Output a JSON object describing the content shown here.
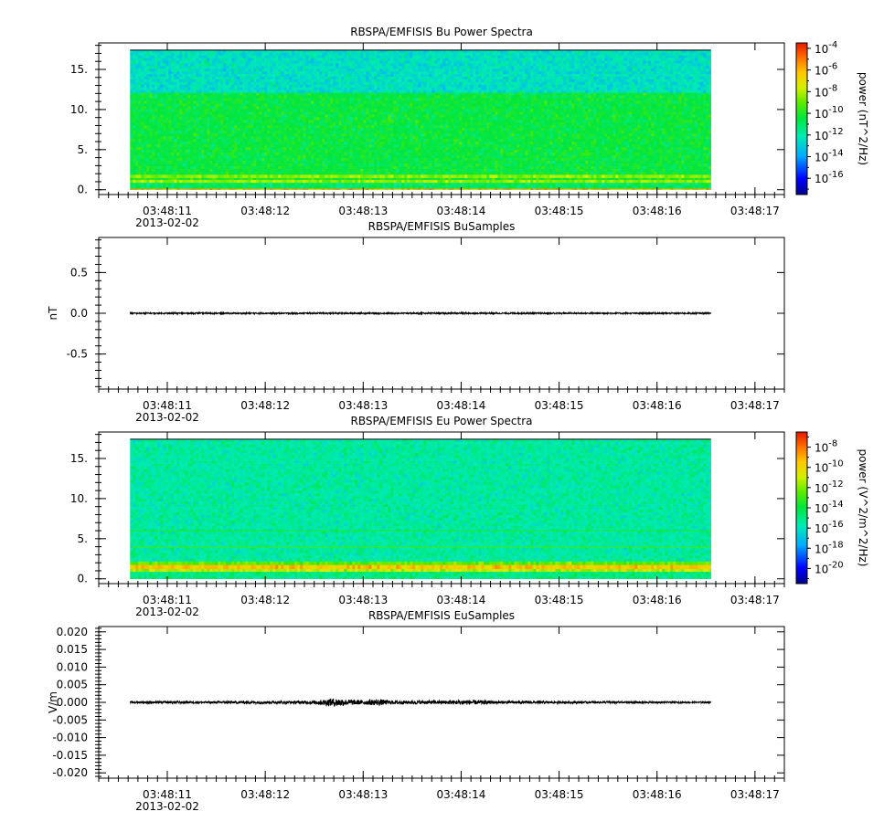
{
  "chart_data": [
    {
      "type": "heatmap",
      "title": "RBSPA/EMFISIS  Bu Power Spectra",
      "ylabel": "",
      "ylim": [
        -0.6,
        18.3
      ],
      "yticks": [
        0,
        5,
        10,
        15
      ],
      "ytick_labels": [
        "0.",
        "5.",
        "10.",
        "15."
      ],
      "xlim": [
        10.3,
        17.3
      ],
      "xticks": [
        11,
        12,
        13,
        14,
        15,
        16,
        17
      ],
      "xtick_labels": [
        "03:48:11",
        "03:48:12",
        "03:48:13",
        "03:48:14",
        "03:48:15",
        "03:48:16",
        "03:48:17"
      ],
      "date_label": "2013-02-02",
      "data_x_range": [
        10.62,
        16.55
      ],
      "data_y_range": [
        0,
        17.4
      ],
      "bands": [
        {
          "y": [
            0.0,
            0.15
          ],
          "level": -6
        },
        {
          "y": [
            0.15,
            0.9
          ],
          "level": -11
        },
        {
          "y": [
            0.9,
            1.25
          ],
          "level": -8.5
        },
        {
          "y": [
            1.25,
            1.5
          ],
          "level": -10
        },
        {
          "y": [
            1.5,
            1.9
          ],
          "level": -8.5
        },
        {
          "y": [
            1.9,
            12.1
          ],
          "level": -10.5
        },
        {
          "y": [
            12.1,
            17.4
          ],
          "level": -12.5
        }
      ],
      "colorbar": {
        "label": "power (nT^2/Hz)",
        "range": [
          -17.5,
          -3.5
        ],
        "ticks": [
          -16,
          -14,
          -12,
          -10,
          -8,
          -6,
          -4
        ],
        "tick_exponents": [
          "-16",
          "-14",
          "-12",
          "-10",
          "-8",
          "-6",
          "-4"
        ],
        "tick_base": "10"
      }
    },
    {
      "type": "line",
      "title": "RBSPA/EMFISIS  BuSamples",
      "ylabel": "nT",
      "ylim": [
        -0.93,
        0.93
      ],
      "yticks": [
        -0.5,
        0.0,
        0.5
      ],
      "ytick_labels": [
        "-0.5",
        "0.0",
        "0.5"
      ],
      "xlim": [
        10.3,
        17.3
      ],
      "xticks": [
        11,
        12,
        13,
        14,
        15,
        16,
        17
      ],
      "xtick_labels": [
        "03:48:11",
        "03:48:12",
        "03:48:13",
        "03:48:14",
        "03:48:15",
        "03:48:16",
        "03:48:17"
      ],
      "date_label": "2013-02-02",
      "series": [
        {
          "x_range": [
            10.62,
            16.55
          ],
          "baseline": 0.0,
          "amplitude_profile": [
            [
              10.62,
              0.008
            ],
            [
              16.55,
              0.008
            ]
          ]
        }
      ]
    },
    {
      "type": "heatmap",
      "title": "RBSPA/EMFISIS  Eu Power Spectra",
      "ylabel": "",
      "ylim": [
        -0.6,
        18.3
      ],
      "yticks": [
        0,
        5,
        10,
        15
      ],
      "ytick_labels": [
        "0.",
        "5.",
        "10.",
        "15."
      ],
      "xlim": [
        10.3,
        17.3
      ],
      "xticks": [
        11,
        12,
        13,
        14,
        15,
        16,
        17
      ],
      "xtick_labels": [
        "03:48:11",
        "03:48:12",
        "03:48:13",
        "03:48:14",
        "03:48:15",
        "03:48:16",
        "03:48:17"
      ],
      "date_label": "2013-02-02",
      "data_x_range": [
        10.62,
        16.55
      ],
      "data_y_range": [
        0,
        17.4
      ],
      "bands": [
        {
          "y": [
            0.0,
            0.9
          ],
          "level": -15
        },
        {
          "y": [
            0.9,
            1.25
          ],
          "level": -11.5
        },
        {
          "y": [
            1.25,
            1.75
          ],
          "level": -9.5
        },
        {
          "y": [
            1.75,
            2.2
          ],
          "level": -12.5
        },
        {
          "y": [
            2.2,
            17.4
          ],
          "level": -15.5
        }
      ],
      "lines": [
        {
          "y": 4.0,
          "level": -13
        },
        {
          "y": 6.0,
          "level": -13.5
        }
      ],
      "colorbar": {
        "label": "power (V^2/m^2/Hz)",
        "range": [
          -21.5,
          -6.5
        ],
        "ticks": [
          -20,
          -18,
          -16,
          -14,
          -12,
          -10,
          -8
        ],
        "tick_exponents": [
          "-20",
          "-18",
          "-16",
          "-14",
          "-12",
          "-10",
          "-8"
        ],
        "tick_base": "10"
      }
    },
    {
      "type": "line",
      "title": "RBSPA/EMFISIS  EuSamples",
      "ylabel": "V/m",
      "ylim": [
        -0.0215,
        0.0215
      ],
      "yticks": [
        -0.02,
        -0.015,
        -0.01,
        -0.005,
        0.0,
        0.005,
        0.01,
        0.015,
        0.02
      ],
      "ytick_labels": [
        "-0.020",
        "-0.015",
        "-0.010",
        "-0.005",
        "0.000",
        "0.005",
        "0.010",
        "0.015",
        "0.020"
      ],
      "xlim": [
        10.3,
        17.3
      ],
      "xticks": [
        11,
        12,
        13,
        14,
        15,
        16,
        17
      ],
      "xtick_labels": [
        "03:48:11",
        "03:48:12",
        "03:48:13",
        "03:48:14",
        "03:48:15",
        "03:48:16",
        "03:48:17"
      ],
      "date_label": "2013-02-02",
      "series": [
        {
          "x_range": [
            10.62,
            16.55
          ],
          "baseline": 0.0,
          "amplitude_profile": [
            [
              10.62,
              0.0003
            ],
            [
              11.5,
              0.0003
            ],
            [
              11.8,
              0.0004
            ],
            [
              12.3,
              0.0004
            ],
            [
              12.5,
              0.0005
            ],
            [
              12.7,
              0.0012
            ],
            [
              12.85,
              0.0008
            ],
            [
              13.0,
              0.0006
            ],
            [
              13.15,
              0.0009
            ],
            [
              13.3,
              0.0005
            ],
            [
              13.8,
              0.0005
            ],
            [
              14.05,
              0.0007
            ],
            [
              14.4,
              0.0004
            ],
            [
              15.0,
              0.0003
            ],
            [
              16.55,
              0.0002
            ]
          ]
        }
      ]
    }
  ]
}
